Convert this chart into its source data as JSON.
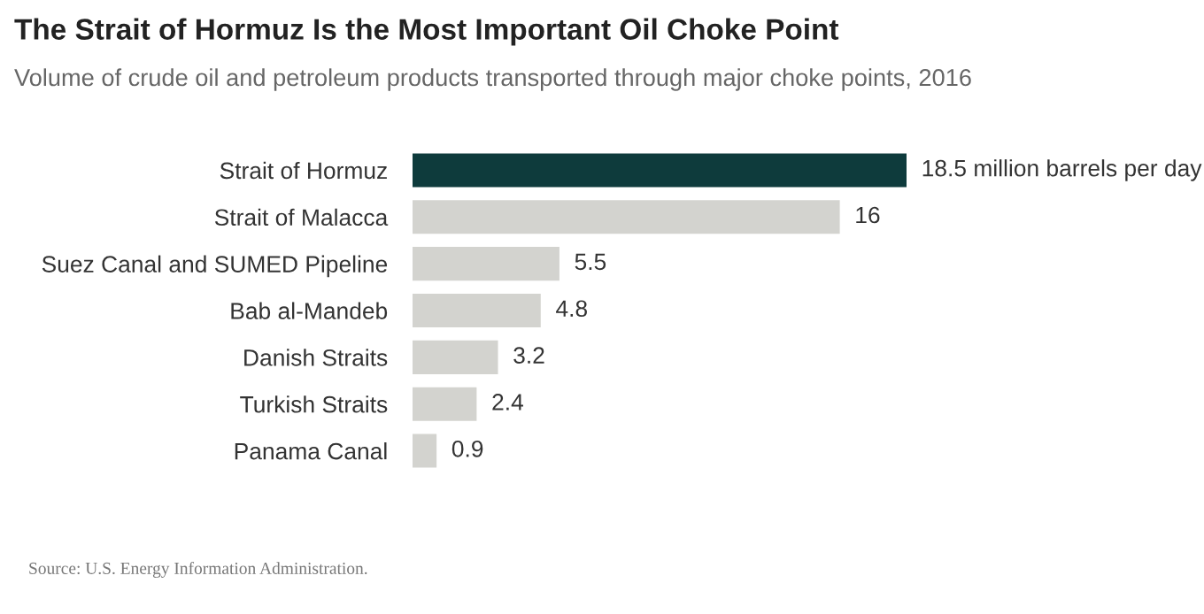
{
  "chart_data": {
    "type": "bar",
    "orientation": "horizontal",
    "title": "The Strait of Hormuz Is the Most Important Oil Choke Point",
    "subtitle": "Volume of crude oil and petroleum products transported through major choke points, 2016",
    "categories": [
      "Strait of Hormuz",
      "Strait of Malacca",
      "Suez Canal and SUMED Pipeline",
      "Bab al-Mandeb",
      "Danish Straits",
      "Turkish Straits",
      "Panama Canal"
    ],
    "values": [
      18.5,
      16,
      5.5,
      4.8,
      3.2,
      2.4,
      0.9
    ],
    "colors": [
      "#0e3b3c",
      "#d3d3cf",
      "#d3d3cf",
      "#d3d3cf",
      "#d3d3cf",
      "#d3d3cf",
      "#d3d3cf"
    ],
    "value_labels": [
      "18.5 million barrels per day",
      "16",
      "5.5",
      "4.8",
      "3.2",
      "2.4",
      "0.9"
    ],
    "annotations": [
      "Source: U.S. Energy Information Administration."
    ],
    "grid": false,
    "legend": false
  }
}
